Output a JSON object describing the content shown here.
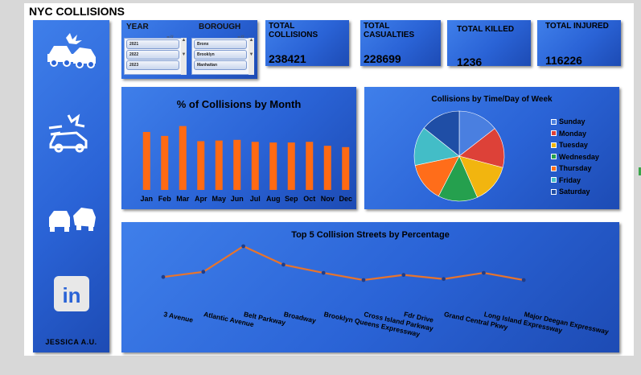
{
  "dashboard": {
    "title": "NYC COLLISIONS",
    "author": "JESSICA  A.U."
  },
  "sidebar": {
    "icons": [
      "car-crash-icon",
      "car-accident-icon",
      "cars-collision-icon",
      "linkedin-icon"
    ],
    "linkedin_text": "in"
  },
  "slicers": {
    "year": {
      "title": "YEAR",
      "items": [
        "2021",
        "2022",
        "2023"
      ],
      "filter_glyph": "≡⊽"
    },
    "borough": {
      "title": "BOROUGH",
      "items": [
        "Bronx",
        "Brooklyn",
        "Manhattan"
      ],
      "filter_glyph": "≡⊽"
    }
  },
  "kpis": [
    {
      "label": "TOTAL COLLISIONS",
      "value": "238421"
    },
    {
      "label": "TOTAL CASUALTIES",
      "value": "228699"
    },
    {
      "label": "TOTAL KILLED",
      "value": "1236"
    },
    {
      "label": "TOTAL INJURED",
      "value": "116226"
    }
  ],
  "colors": {
    "bar": "#ff6a13",
    "line": "#e8742c",
    "marker": "#1f3d8a"
  },
  "chart_data": [
    {
      "type": "bar",
      "title": "% of Collisions by Month",
      "categories": [
        "Jan",
        "Feb",
        "Mar",
        "Apr",
        "May",
        "Jun",
        "Jul",
        "Aug",
        "Sep",
        "Oct",
        "Nov",
        "Dec"
      ],
      "values": [
        8.8,
        8.2,
        9.7,
        7.4,
        7.5,
        7.6,
        7.3,
        7.2,
        7.2,
        7.3,
        6.7,
        6.5
      ],
      "ylim": [
        0,
        11
      ],
      "grid": false,
      "legend": "none"
    },
    {
      "type": "pie",
      "title": "Collisions by Time/Day of Week",
      "categories": [
        "Sunday",
        "Monday",
        "Tuesday",
        "Wednesday",
        "Thursday",
        "Friday",
        "Saturday"
      ],
      "values": [
        14.5,
        14.6,
        14.3,
        14.2,
        14.1,
        14.0,
        14.3
      ],
      "colors": [
        "#4a7fe0",
        "#dd4138",
        "#f2b50f",
        "#25a04e",
        "#ff6d1a",
        "#43bdc7",
        "#1f4ea6"
      ],
      "legend": "right"
    },
    {
      "type": "line",
      "title": "Top 5 Collision Streets by Percentage",
      "categories": [
        "3 Avenue",
        "Atlantic Avenue",
        "Belt Parkway",
        "Broadway",
        "Brooklyn Queens Expressway",
        "Cross Island Parkway",
        "Fdr Drive",
        "Grand Central Pkwy",
        "Long Island Expressway",
        "Major Deegan Expressway"
      ],
      "values": [
        1.6,
        2.1,
        4.6,
        2.8,
        2.0,
        1.3,
        1.8,
        1.4,
        2.0,
        1.3
      ],
      "grid": false,
      "legend": "none"
    }
  ]
}
